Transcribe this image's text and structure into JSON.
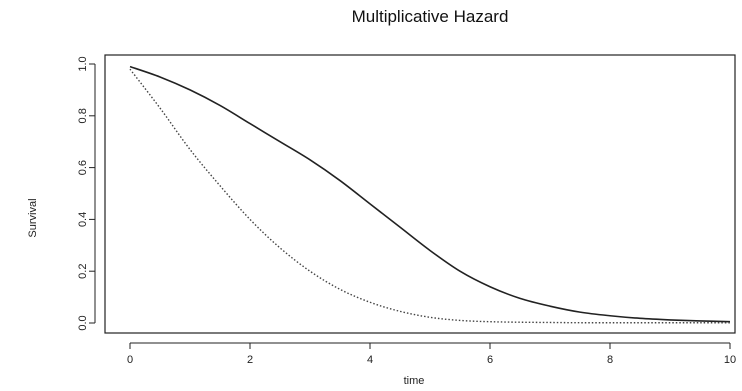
{
  "chart_data": {
    "type": "line",
    "title": "Multiplicative Hazard",
    "xlabel": "time",
    "ylabel": "Survival",
    "xlim": [
      0,
      10
    ],
    "ylim": [
      0,
      1
    ],
    "x_ticks": [
      "0",
      "2",
      "4",
      "6",
      "8",
      "10"
    ],
    "y_ticks": [
      "0.0",
      "0.2",
      "0.4",
      "0.6",
      "0.8",
      "1.0"
    ],
    "grid": false,
    "legend": "none",
    "series": [
      {
        "style": "solid",
        "color": "#222222",
        "x": [
          0,
          0.5,
          1,
          1.5,
          2,
          2.5,
          3,
          3.5,
          4,
          4.5,
          5,
          5.5,
          6,
          6.5,
          7,
          7.5,
          8,
          8.5,
          9,
          9.5,
          10
        ],
        "y": [
          0.99,
          0.95,
          0.9,
          0.84,
          0.77,
          0.7,
          0.63,
          0.55,
          0.46,
          0.37,
          0.28,
          0.2,
          0.14,
          0.095,
          0.065,
          0.042,
          0.028,
          0.018,
          0.012,
          0.008,
          0.005
        ]
      },
      {
        "style": "dotted",
        "color": "#444444",
        "x": [
          0,
          0.5,
          1,
          1.5,
          2,
          2.5,
          3,
          3.5,
          4,
          4.5,
          5,
          5.5,
          6,
          6.5,
          7,
          7.5,
          8,
          8.5,
          9,
          9.5,
          10
        ],
        "y": [
          0.98,
          0.83,
          0.67,
          0.53,
          0.4,
          0.29,
          0.2,
          0.13,
          0.08,
          0.045,
          0.022,
          0.01,
          0.005,
          0.003,
          0.002,
          0.001,
          0.001,
          0.001,
          0.001,
          0.001,
          0.001
        ]
      }
    ]
  }
}
